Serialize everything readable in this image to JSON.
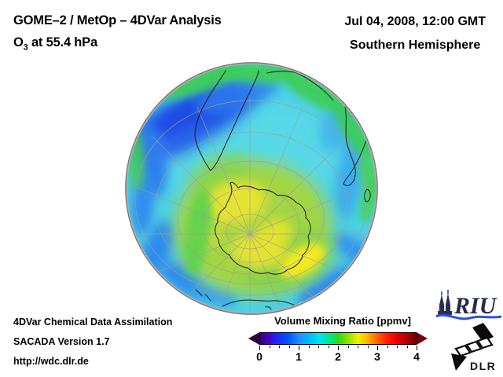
{
  "header": {
    "title_line1": "GOME–2 / MetOp – 4DVar Analysis",
    "species_symbol": "O",
    "species_subscript": "3",
    "level_text": " at 55.4 hPa",
    "datetime": "Jul 04, 2008, 12:00 GMT",
    "region": "Southern Hemisphere"
  },
  "footer": {
    "line1": "4DVar Chemical Data Assimilation",
    "line2": "SACADA Version 1.7",
    "line3": "http://wdc.dlr.de"
  },
  "colorbar": {
    "title": "Volume Mixing Ratio [ppmv]",
    "min": 0,
    "max": 4,
    "tick_labels": [
      "0",
      "1",
      "2",
      "3",
      "4"
    ],
    "minor_tick_divisions": 16,
    "arrow_left_color": "#2e0040",
    "arrow_right_color": "#7c0000",
    "gradient": [
      {
        "p": 0,
        "c": "#30006e"
      },
      {
        "p": 4,
        "c": "#4400b4"
      },
      {
        "p": 10,
        "c": "#2222ee"
      },
      {
        "p": 18,
        "c": "#0055ff"
      },
      {
        "p": 25,
        "c": "#1e90ff"
      },
      {
        "p": 31,
        "c": "#00b8ff"
      },
      {
        "p": 38,
        "c": "#00e4ee"
      },
      {
        "p": 44,
        "c": "#00e596"
      },
      {
        "p": 50,
        "c": "#28d828"
      },
      {
        "p": 56,
        "c": "#8ade00"
      },
      {
        "p": 63,
        "c": "#f2ee00"
      },
      {
        "p": 69,
        "c": "#ffb400"
      },
      {
        "p": 75,
        "c": "#ff6400"
      },
      {
        "p": 82,
        "c": "#ff1e00"
      },
      {
        "p": 88,
        "c": "#e60000"
      },
      {
        "p": 94,
        "c": "#b00000"
      },
      {
        "p": 100,
        "c": "#6e0000"
      }
    ]
  },
  "logos": {
    "riu_text": "RIU",
    "dlr_text": "DLR",
    "riu_navy": "#2a3054",
    "riu_wave_blue": "#2a52d8"
  },
  "map": {
    "projection": "orthographic, South Pole view",
    "features": [
      "south-america",
      "africa",
      "madagascar",
      "antarctica",
      "australia",
      "tasmania",
      "new-zealand"
    ],
    "colors": {
      "ocean_base_cyan": "#4dd2e6",
      "low_value_blue": "#2355e8",
      "mid_blue": "#2f8cf0",
      "limb_green": "#3ecd52",
      "center_green": "#a8d63a",
      "center_yellow": "#e4e332",
      "rim_gray": "#8a8a8a",
      "graticule_gray": "#a39c9c",
      "coastline": "#1c1c1c"
    }
  },
  "chart_data": {
    "type": "heatmap",
    "title": "O3 volume mixing ratio at 55.4 hPa, Southern Hemisphere, Jul 04 2008 12:00 GMT",
    "legend": {
      "label": "Volume Mixing Ratio [ppmv]",
      "range": [
        0,
        4
      ],
      "ticks": [
        0,
        1,
        2,
        3,
        4
      ]
    },
    "regions_approx_ppmv": [
      {
        "region": "central Antarctic green-yellow maximum",
        "value": 2.5
      },
      {
        "region": "yellow patch southeast of pole",
        "value": 2.7
      },
      {
        "region": "mid-latitude cyan background",
        "value": 1.7
      },
      {
        "region": "dark blue minimum northwest (SE Pacific)",
        "value": 1.1
      },
      {
        "region": "green band along sunlit limb",
        "value": 2.1
      },
      {
        "region": "blue band along lower limb",
        "value": 1.4
      }
    ]
  }
}
